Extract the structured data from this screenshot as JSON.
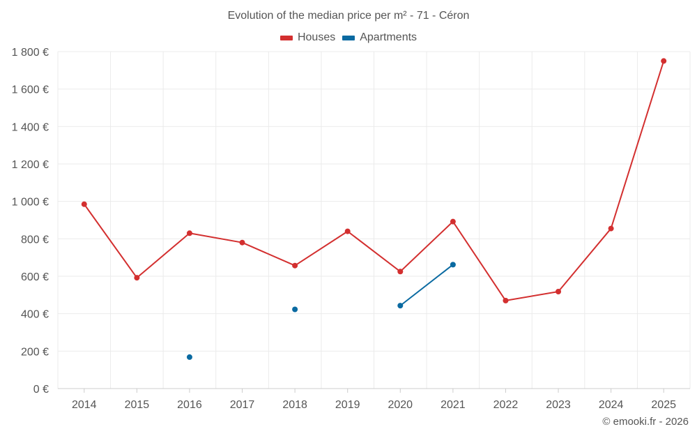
{
  "chart_data": {
    "type": "line",
    "title": "Evolution of the median price per m² - 71 - Céron",
    "categories": [
      "2014",
      "2015",
      "2016",
      "2017",
      "2018",
      "2019",
      "2020",
      "2021",
      "2022",
      "2023",
      "2024",
      "2025"
    ],
    "series": [
      {
        "name": "Houses",
        "color": "#d32f2f",
        "values": [
          985,
          592,
          830,
          780,
          657,
          840,
          625,
          892,
          470,
          518,
          855,
          1750
        ]
      },
      {
        "name": "Apartments",
        "color": "#0a6aa1",
        "values": [
          null,
          null,
          168,
          null,
          423,
          null,
          443,
          662,
          null,
          null,
          null,
          null
        ]
      }
    ],
    "ylim": [
      0,
      1800
    ],
    "yticks": [
      0,
      200,
      400,
      600,
      800,
      1000,
      1200,
      1400,
      1600,
      1800
    ],
    "ytick_labels": [
      "0 €",
      "200 €",
      "400 €",
      "600 €",
      "800 €",
      "1 000 €",
      "1 200 €",
      "1 400 €",
      "1 600 €",
      "1 800 €"
    ],
    "xlabel": "",
    "ylabel": "",
    "grid": true,
    "legend": "top-center"
  },
  "credit": "© emooki.fr - 2026"
}
